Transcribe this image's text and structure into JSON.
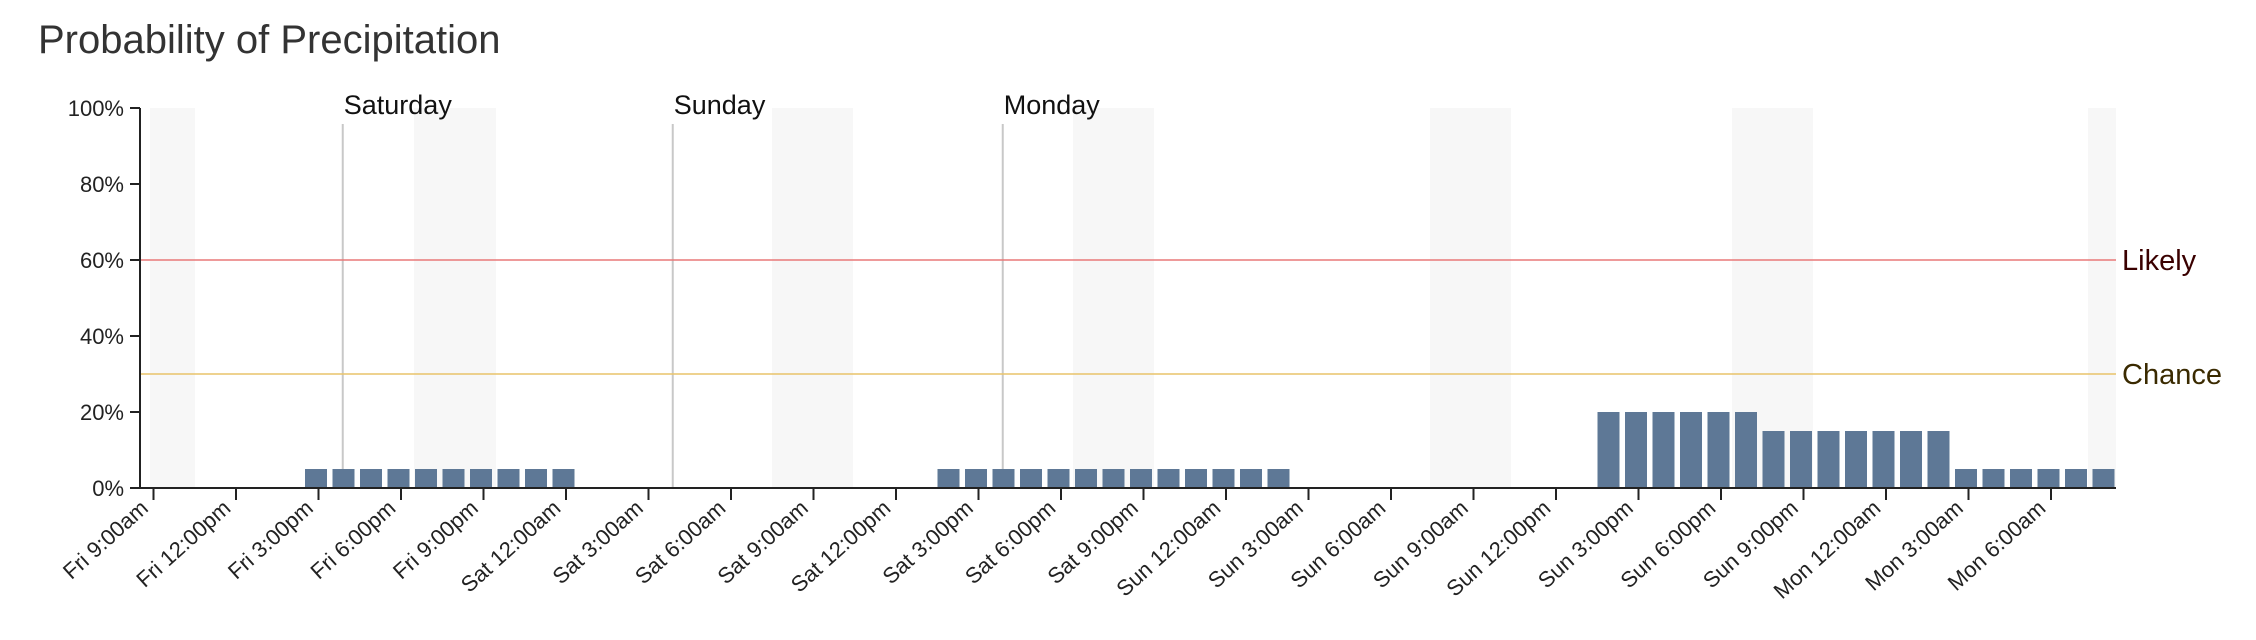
{
  "chart_data": {
    "type": "bar",
    "title": "Probability of Precipitation",
    "ylim": [
      0,
      100
    ],
    "y_ticks": [
      "0%",
      "20%",
      "40%",
      "60%",
      "80%",
      "100%"
    ],
    "x_tick_labels": [
      "Fri 9:00am",
      "Fri 12:00pm",
      "Fri 3:00pm",
      "Fri 6:00pm",
      "Fri 9:00pm",
      "Sat 12:00am",
      "Sat 3:00am",
      "Sat 6:00am",
      "Sat 9:00am",
      "Sat 12:00pm",
      "Sat 3:00pm",
      "Sat 6:00pm",
      "Sat 9:00pm",
      "Sun 12:00am",
      "Sun 3:00am",
      "Sun 6:00am",
      "Sun 9:00am",
      "Sun 12:00pm",
      "Sun 3:00pm",
      "Sun 6:00pm",
      "Sun 9:00pm",
      "Mon 12:00am",
      "Mon 3:00am",
      "Mon 6:00am"
    ],
    "day_labels": [
      "Saturday",
      "Sunday",
      "Monday"
    ],
    "reference_lines": [
      {
        "label": "Likely",
        "value": 60,
        "color": "#e87878",
        "text_color": "#3a0000"
      },
      {
        "label": "Chance",
        "value": 30,
        "color": "#e9c46a",
        "text_color": "#3a2a00"
      }
    ],
    "series": [
      {
        "hours": [
          "Fri 3:00pm",
          "Fri 4:00pm",
          "Fri 5:00pm",
          "Fri 6:00pm",
          "Fri 7:00pm",
          "Fri 8:00pm",
          "Fri 9:00pm",
          "Fri 10:00pm",
          "Fri 11:00pm",
          "Sat 12:00am",
          "Sat 2:00pm",
          "Sat 3:00pm",
          "Sat 4:00pm",
          "Sat 5:00pm",
          "Sat 6:00pm",
          "Sat 7:00pm",
          "Sat 8:00pm",
          "Sat 9:00pm",
          "Sat 10:00pm",
          "Sat 11:00pm",
          "Sun 12:00am",
          "Sun 1:00am",
          "Sun 2:00am",
          "Sun 2:00pm",
          "Sun 3:00pm",
          "Sun 4:00pm",
          "Sun 5:00pm",
          "Sun 6:00pm",
          "Sun 7:00pm",
          "Sun 8:00pm",
          "Sun 9:00pm",
          "Sun 10:00pm",
          "Sun 11:00pm",
          "Mon 12:00am",
          "Mon 1:00am",
          "Mon 2:00am",
          "Mon 3:00am",
          "Mon 4:00am",
          "Mon 5:00am",
          "Mon 6:00am",
          "Mon 7:00am",
          "Mon 8:00am"
        ],
        "hours_after_fri_9am": [
          6,
          7,
          8,
          9,
          10,
          11,
          12,
          13,
          14,
          15,
          29,
          30,
          31,
          32,
          33,
          34,
          35,
          36,
          37,
          38,
          39,
          40,
          41,
          53,
          54,
          55,
          56,
          57,
          58,
          59,
          60,
          61,
          62,
          63,
          64,
          65,
          66,
          67,
          68,
          69,
          70,
          71
        ],
        "values": [
          5,
          5,
          5,
          5,
          5,
          5,
          5,
          5,
          5,
          5,
          5,
          5,
          5,
          5,
          5,
          5,
          5,
          5,
          5,
          5,
          5,
          5,
          5,
          20,
          20,
          20,
          20,
          20,
          20,
          15,
          15,
          15,
          15,
          15,
          15,
          15,
          5,
          5,
          5,
          5,
          5,
          5
        ],
        "color": "#5e7896"
      }
    ],
    "grid": false
  }
}
